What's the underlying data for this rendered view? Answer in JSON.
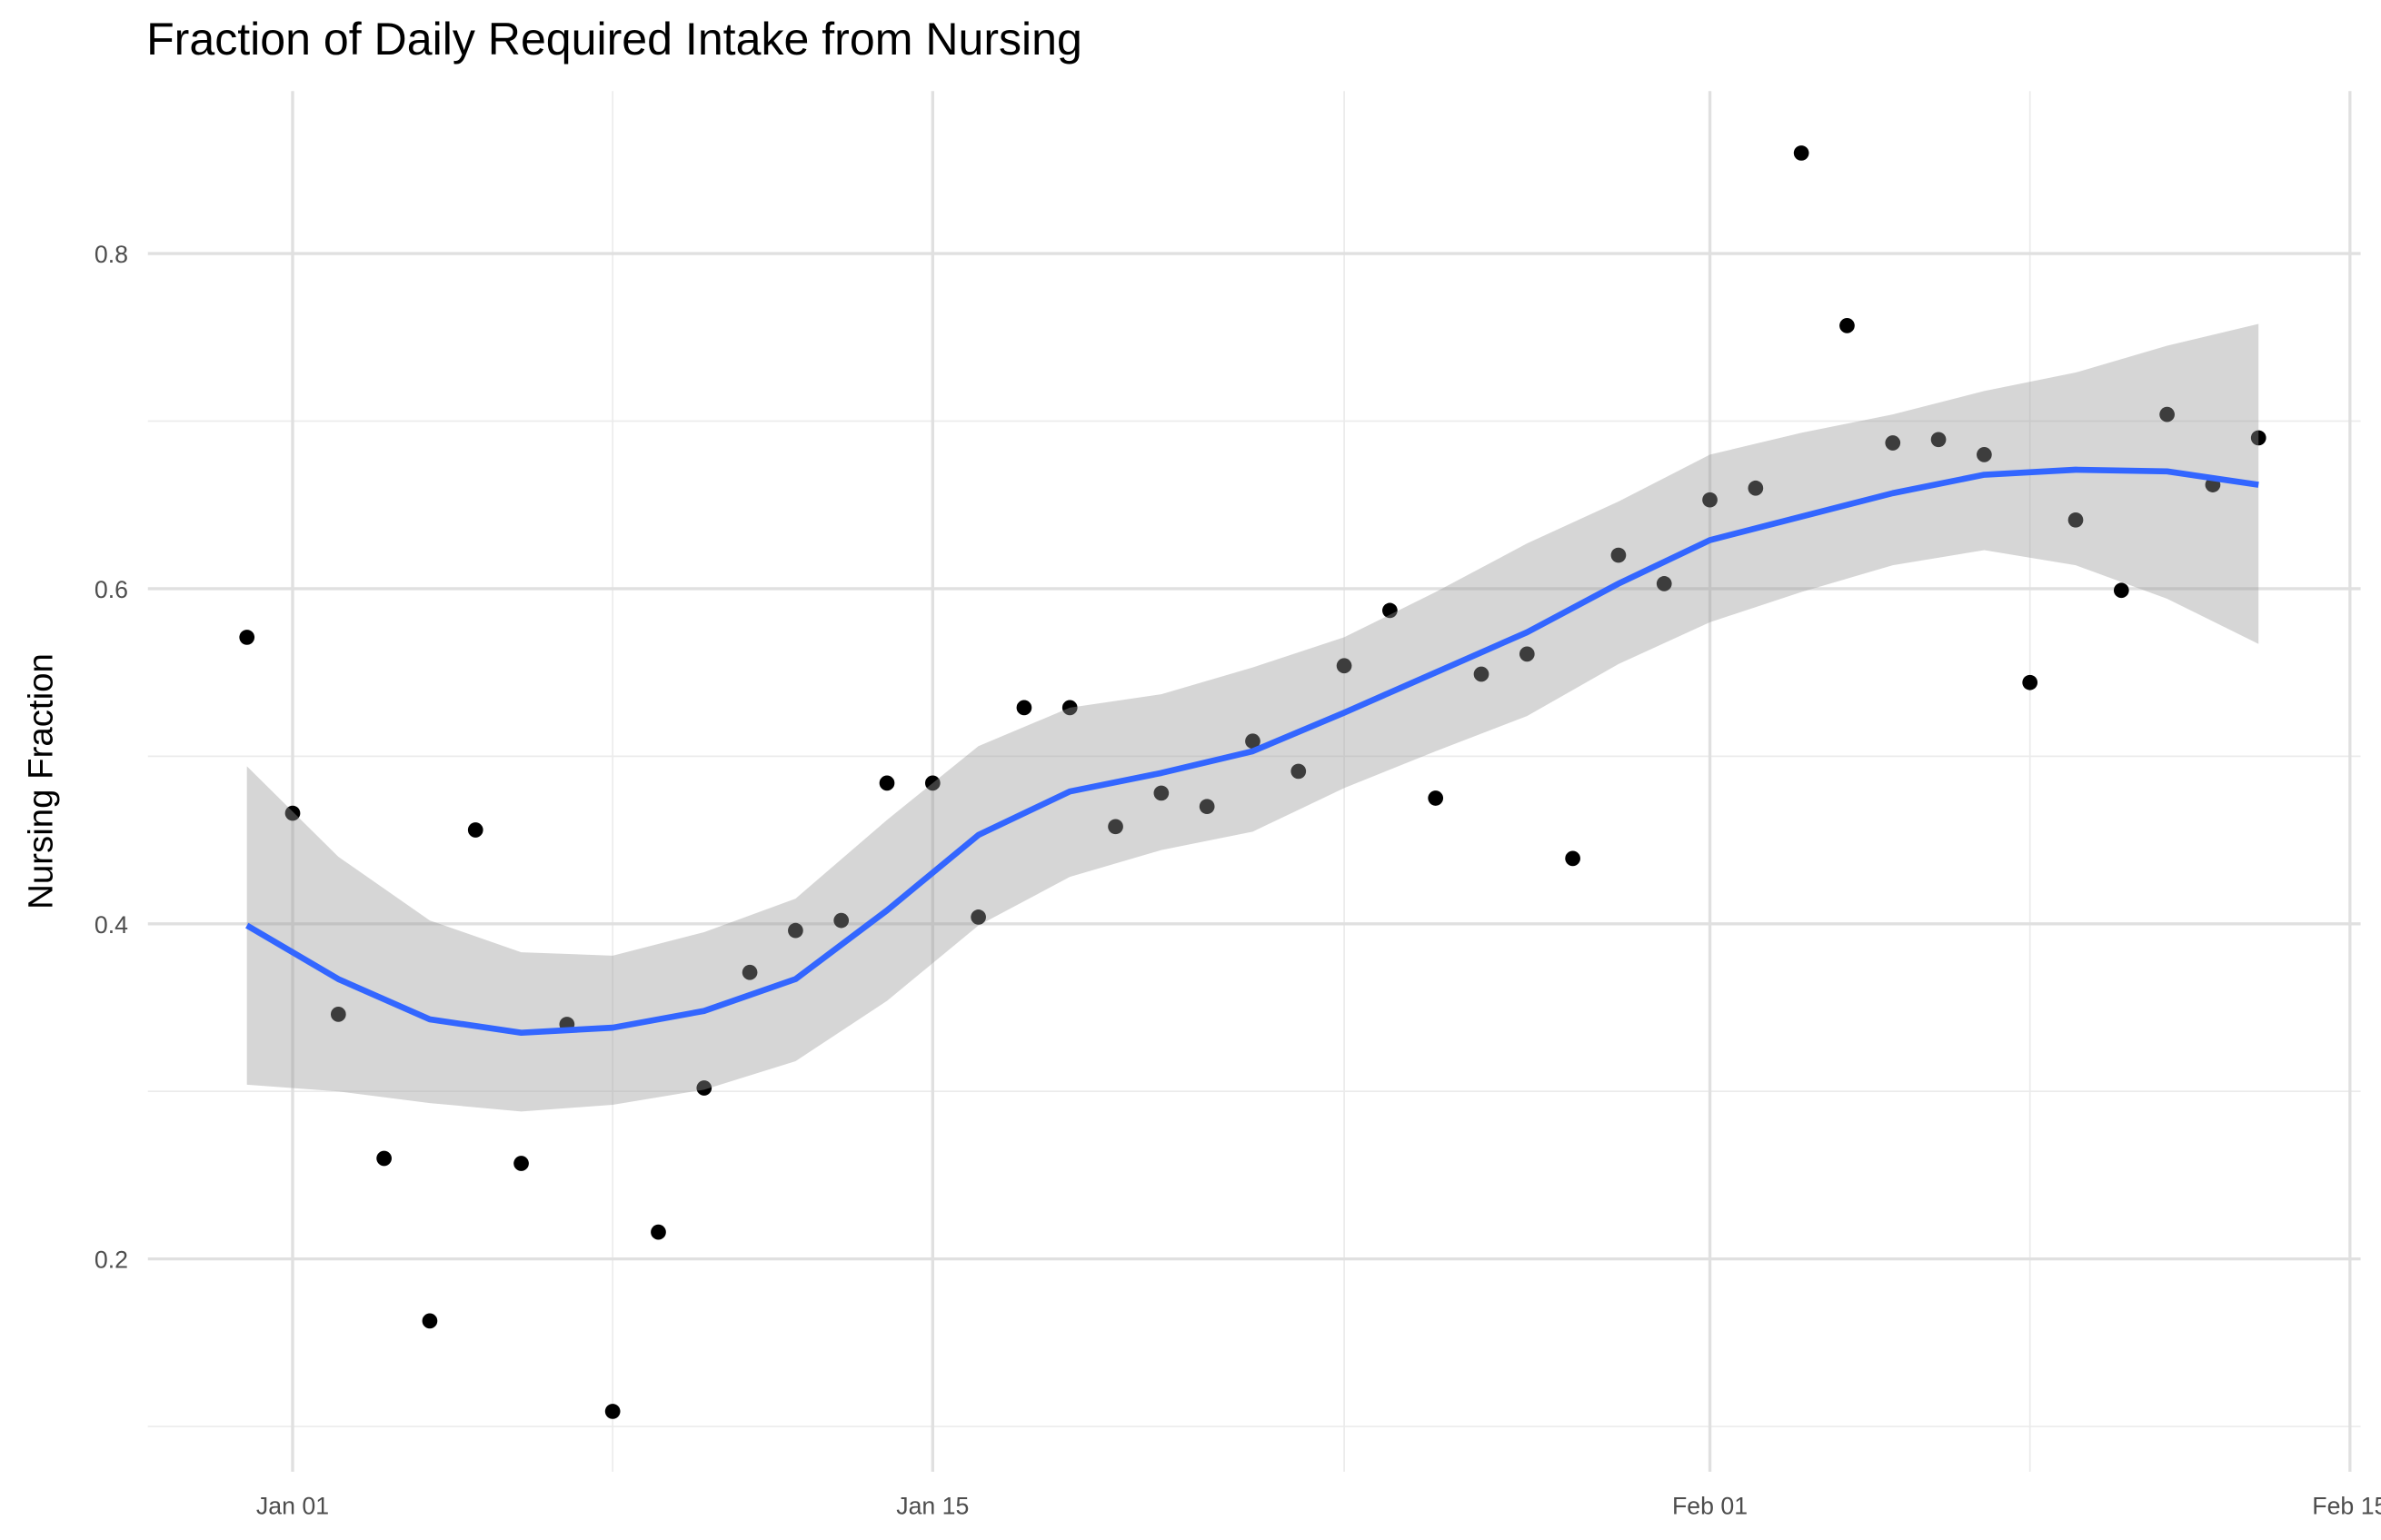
{
  "chart_data": {
    "type": "scatter",
    "title": "Fraction of Daily Required Intake from Nursing",
    "y_label": "Nursing Fraction",
    "x": [
      "Dec 31",
      "Jan 01",
      "Jan 02",
      "Jan 03",
      "Jan 04",
      "Jan 05",
      "Jan 06",
      "Jan 07",
      "Jan 08",
      "Jan 09",
      "Jan 10",
      "Jan 11",
      "Jan 12",
      "Jan 13",
      "Jan 14",
      "Jan 15",
      "Jan 16",
      "Jan 17",
      "Jan 18",
      "Jan 19",
      "Jan 20",
      "Jan 21",
      "Jan 22",
      "Jan 23",
      "Jan 24",
      "Jan 25",
      "Jan 26",
      "Jan 27",
      "Jan 28",
      "Jan 29",
      "Jan 30",
      "Jan 31",
      "Feb 01",
      "Feb 02",
      "Feb 03",
      "Feb 04",
      "Feb 05",
      "Feb 06",
      "Feb 07",
      "Feb 08",
      "Feb 09",
      "Feb 10",
      "Feb 11",
      "Feb 12",
      "Feb 13"
    ],
    "values": [
      0.571,
      0.466,
      0.346,
      0.26,
      0.163,
      0.456,
      0.257,
      0.34,
      0.109,
      0.216,
      0.302,
      0.371,
      0.396,
      0.402,
      0.484,
      0.484,
      0.404,
      0.529,
      0.529,
      0.458,
      0.478,
      0.47,
      0.509,
      0.491,
      0.554,
      0.587,
      0.475,
      0.549,
      0.561,
      0.439,
      0.62,
      0.603,
      0.653,
      0.66,
      0.86,
      0.757,
      0.687,
      0.689,
      0.68,
      0.544,
      0.641,
      0.599,
      0.704,
      0.662,
      0.69
    ],
    "color": "#000000",
    "smooth": {
      "x": [
        "Dec 31",
        "Jan 02",
        "Jan 04",
        "Jan 06",
        "Jan 08",
        "Jan 10",
        "Jan 12",
        "Jan 14",
        "Jan 16",
        "Jan 18",
        "Jan 20",
        "Jan 22",
        "Jan 24",
        "Jan 26",
        "Jan 28",
        "Jan 30",
        "Feb 01",
        "Feb 03",
        "Feb 05",
        "Feb 07",
        "Feb 09",
        "Feb 11",
        "Feb 13"
      ],
      "values": [
        0.399,
        0.367,
        0.343,
        0.335,
        0.338,
        0.348,
        0.367,
        0.408,
        0.453,
        0.479,
        0.49,
        0.503,
        0.526,
        0.55,
        0.574,
        0.603,
        0.629,
        0.643,
        0.657,
        0.668,
        0.671,
        0.67,
        0.662
      ],
      "upper": [
        0.494,
        0.44,
        0.402,
        0.383,
        0.381,
        0.395,
        0.415,
        0.462,
        0.506,
        0.529,
        0.537,
        0.553,
        0.571,
        0.598,
        0.627,
        0.652,
        0.68,
        0.693,
        0.704,
        0.718,
        0.729,
        0.745,
        0.758
      ],
      "lower": [
        0.304,
        0.3,
        0.293,
        0.288,
        0.292,
        0.301,
        0.318,
        0.354,
        0.399,
        0.428,
        0.444,
        0.455,
        0.481,
        0.503,
        0.524,
        0.555,
        0.58,
        0.598,
        0.614,
        0.623,
        0.614,
        0.594,
        0.567
      ],
      "color": "#3366ff",
      "fill": "#999999"
    },
    "xlim": [
      "Dec 29",
      "Feb 15"
    ],
    "xticks": [
      "Jan 01",
      "Jan 15",
      "Feb 01",
      "Feb 15"
    ],
    "x_minor_grid": [
      "Jan 08",
      "Jan 24",
      "Feb 08"
    ],
    "ylim": [
      0.073,
      0.897
    ],
    "yticks": [
      0.2,
      0.4,
      0.6,
      0.8
    ],
    "y_minor_grid": [
      0.1,
      0.3,
      0.5,
      0.7
    ],
    "grid": true
  }
}
